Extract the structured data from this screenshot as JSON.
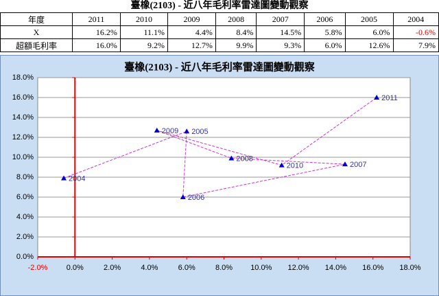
{
  "table": {
    "title": "臺橡(2103) - 近八年毛利率雷達圖變動觀察",
    "header": [
      "年度",
      "2011",
      "2010",
      "2009",
      "2008",
      "2007",
      "2006",
      "2005",
      "2004"
    ],
    "rows": [
      [
        "X",
        "16.2%",
        "11.1%",
        "4.4%",
        "8.4%",
        "14.5%",
        "5.8%",
        "6.0%",
        "-0.6%"
      ],
      [
        "超額毛利率",
        "16.0%",
        "9.2%",
        "12.7%",
        "9.9%",
        "9.3%",
        "6.0%",
        "12.6%",
        "7.9%"
      ]
    ]
  },
  "chart_data": {
    "type": "scatter",
    "title": "臺橡(2103) - 近八年毛利率雷達圖變動觀察",
    "point_labels": [
      "2004",
      "2005",
      "2006",
      "2007",
      "2008",
      "2009",
      "2010",
      "2011"
    ],
    "x": [
      -0.6,
      6.0,
      5.8,
      14.5,
      8.4,
      4.4,
      11.1,
      16.2
    ],
    "values": [
      7.9,
      12.6,
      6.0,
      9.3,
      9.9,
      12.7,
      9.2,
      16.0
    ],
    "color": "#0000cc",
    "line_color": "#cc33cc",
    "xlim": [
      -2,
      18
    ],
    "xticks": [
      {
        "value": -2,
        "label": "-2.0%"
      },
      {
        "value": 0,
        "label": "0.0%"
      },
      {
        "value": 2,
        "label": "2.0%"
      },
      {
        "value": 4,
        "label": "4.0%"
      },
      {
        "value": 6,
        "label": "6.0%"
      },
      {
        "value": 8,
        "label": "8.0%"
      },
      {
        "value": 10,
        "label": "10.0%"
      },
      {
        "value": 12,
        "label": "12.0%"
      },
      {
        "value": 14,
        "label": "14.0%"
      },
      {
        "value": 16,
        "label": "16.0%"
      },
      {
        "value": 18,
        "label": "18.0%"
      }
    ],
    "ylim": [
      0,
      18
    ],
    "yticks": [
      {
        "value": 0,
        "label": "0.0%"
      },
      {
        "value": 2,
        "label": "2.0%"
      },
      {
        "value": 4,
        "label": "4.0%"
      },
      {
        "value": 6,
        "label": "6.0%"
      },
      {
        "value": 8,
        "label": "8.0%"
      },
      {
        "value": 10,
        "label": "10.0%"
      },
      {
        "value": 12,
        "label": "12.0%"
      },
      {
        "value": 14,
        "label": "14.0%"
      },
      {
        "value": 16,
        "label": "16.0%"
      },
      {
        "value": 18,
        "label": "18.0%"
      }
    ],
    "grid": true
  }
}
